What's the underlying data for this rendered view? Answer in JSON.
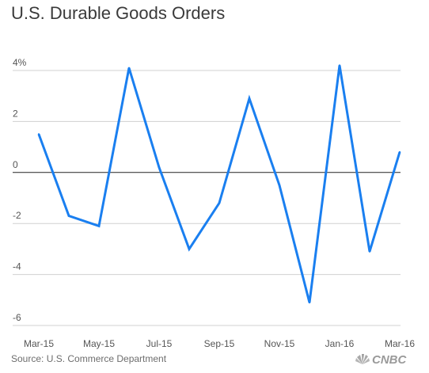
{
  "title": "U.S. Durable Goods Orders",
  "source": "Source: U.S. Commerce Department",
  "brand": "CNBC",
  "colors": {
    "line": "#1a7ff0",
    "grid": "#d0d0d0",
    "zero_line": "#222222",
    "text": "#555555"
  },
  "chart_data": {
    "type": "line",
    "title": "U.S. Durable Goods Orders",
    "xlabel": "",
    "ylabel": "",
    "x": [
      "Mar-15",
      "Apr-15",
      "May-15",
      "Jun-15",
      "Jul-15",
      "Aug-15",
      "Sep-15",
      "Oct-15",
      "Nov-15",
      "Dec-15",
      "Jan-16",
      "Feb-16",
      "Mar-16"
    ],
    "series": [
      {
        "values": [
          1.5,
          -1.7,
          -2.1,
          4.1,
          0.2,
          -3.0,
          -1.2,
          2.9,
          -0.5,
          -5.1,
          4.2,
          -3.1,
          0.8
        ]
      }
    ],
    "x_tick_labels": [
      "Mar-15",
      "May-15",
      "Jul-15",
      "Sep-15",
      "Nov-15",
      "Jan-16",
      "Mar-16"
    ],
    "y_ticks": [
      {
        "value": 4,
        "label": "4%"
      },
      {
        "value": 2,
        "label": "2"
      },
      {
        "value": 0,
        "label": "0"
      },
      {
        "value": -2,
        "label": "-2"
      },
      {
        "value": -4,
        "label": "-4"
      },
      {
        "value": -6,
        "label": "-6"
      }
    ],
    "ylim": [
      -6,
      4
    ],
    "grid": true,
    "legend": "none"
  }
}
